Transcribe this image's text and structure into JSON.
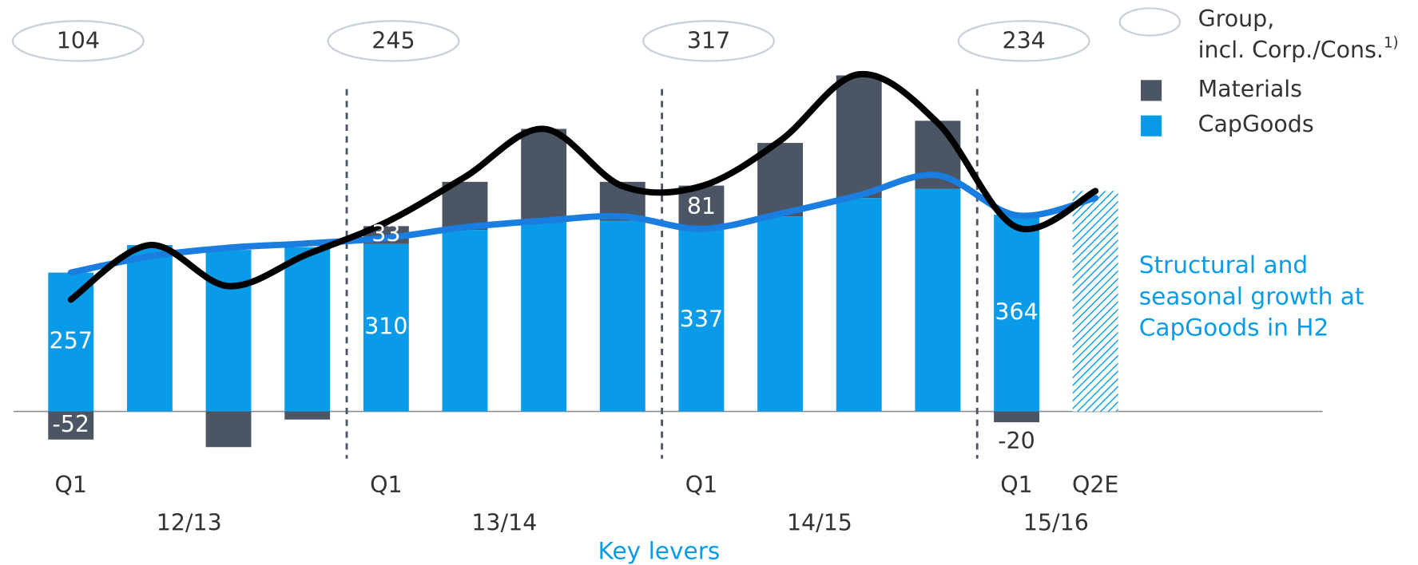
{
  "chart_data": {
    "type": "bar",
    "stacked": true,
    "categories": [
      "Q1",
      null,
      null,
      null,
      "Q1",
      null,
      null,
      null,
      "Q1",
      null,
      null,
      null,
      "Q1",
      "Q2E"
    ],
    "fiscal_years": [
      "12/13",
      "13/14",
      "14/15",
      "15/16"
    ],
    "fiscal_year_totals": [
      104,
      245,
      317,
      234
    ],
    "series": [
      {
        "name": "CapGoods",
        "color": "#0a9be8",
        "values": [
          257,
          308,
          299,
          304,
          310,
          336,
          350,
          353,
          337,
          361,
          395,
          412,
          364,
          408
        ]
      },
      {
        "name": "Materials",
        "color": "#4b5563",
        "values": [
          -52,
          0,
          -66,
          -15,
          33,
          89,
          173,
          72,
          81,
          136,
          227,
          126,
          -20,
          null
        ]
      }
    ],
    "projected": [
      false,
      false,
      false,
      false,
      false,
      false,
      false,
      false,
      false,
      false,
      false,
      false,
      false,
      true
    ],
    "group_line": {
      "name_lines": [
        "Group,",
        "incl. Corp./Cons."
      ],
      "footnote": "1)",
      "color": "#000000",
      "values": [
        207,
        308,
        232,
        291,
        350,
        434,
        523,
        417,
        417,
        501,
        624,
        534,
        341,
        408
      ]
    },
    "trend_line": {
      "color": "#1a7de0",
      "values": [
        257,
        287,
        303,
        311,
        321,
        341,
        353,
        361,
        338,
        366,
        400,
        437,
        363,
        395
      ]
    },
    "annotation": [
      "Structural and",
      "seasonal growth at",
      "CapGoods in H2"
    ],
    "footer": "Key levers",
    "ylim": [
      -100,
      650
    ]
  }
}
